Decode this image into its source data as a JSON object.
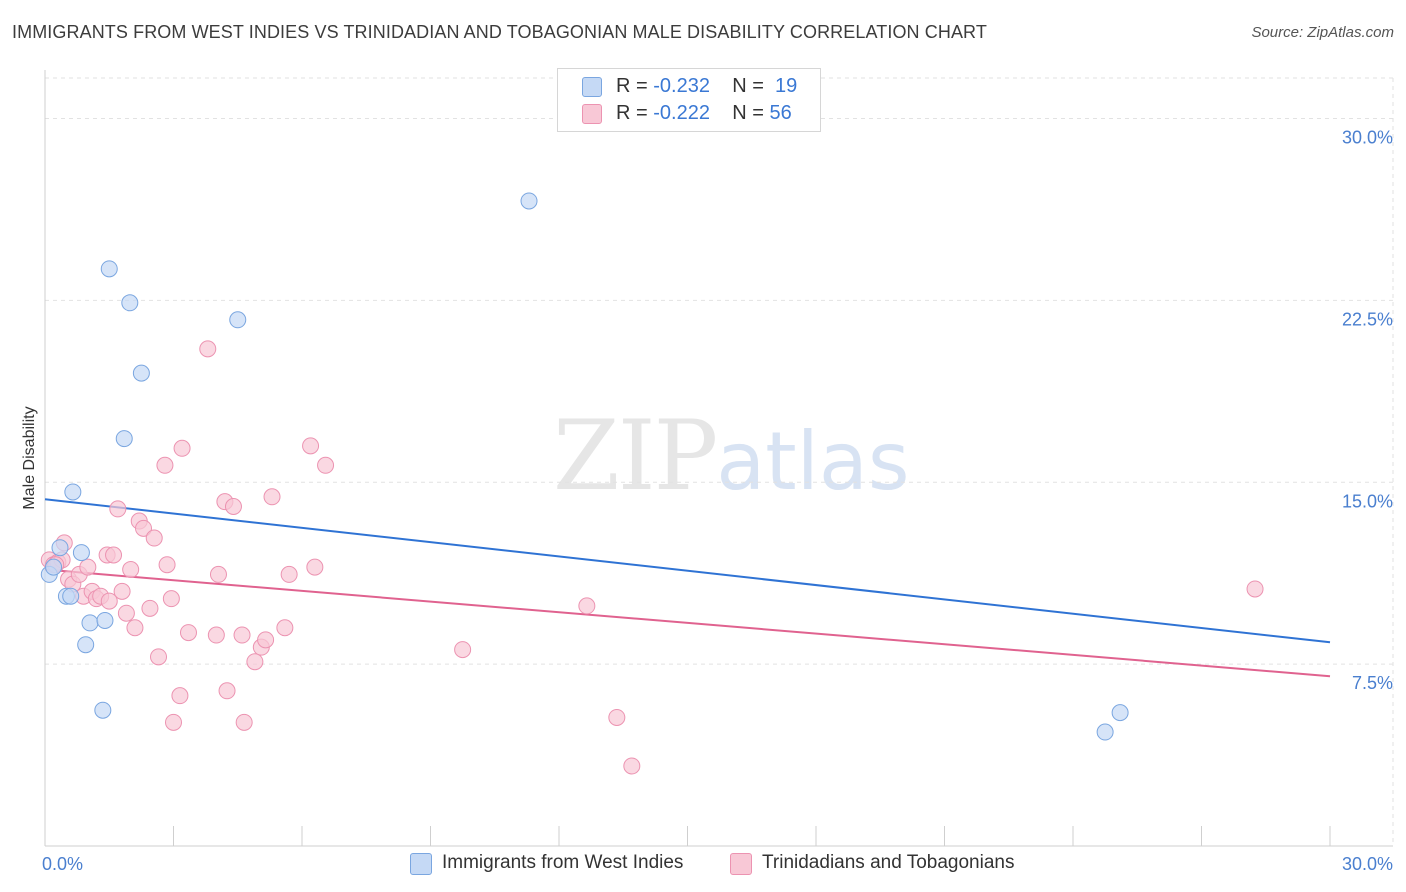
{
  "title": "IMMIGRANTS FROM WEST INDIES VS TRINIDADIAN AND TOBAGONIAN MALE DISABILITY CORRELATION CHART",
  "source": "Source: ZipAtlas.com",
  "watermark": {
    "zip": "ZIP",
    "atlas": "atlas"
  },
  "legend": {
    "r_label": "R =",
    "n_label": "N =",
    "rows": [
      {
        "r": "-0.232",
        "n": "19"
      },
      {
        "r": "-0.222",
        "n": "56"
      }
    ]
  },
  "colors": {
    "blue_fill": "#c5d9f5",
    "blue_stroke": "#7aa6e0",
    "blue_line": "#2f73d4",
    "pink_fill": "#f8c8d6",
    "pink_stroke": "#ec93b1",
    "pink_line": "#e0628f"
  },
  "chart_data": {
    "type": "scatter",
    "title": "IMMIGRANTS FROM WEST INDIES VS TRINIDADIAN AND TOBAGONIAN MALE DISABILITY CORRELATION CHART",
    "xlabel": "",
    "ylabel": "Male Disability",
    "xlim": [
      0,
      30
    ],
    "ylim": [
      0,
      32
    ],
    "x_ticks": [
      "0.0%",
      "30.0%"
    ],
    "y_ticks": [
      {
        "value": 7.5,
        "label": "7.5%"
      },
      {
        "value": 15.0,
        "label": "15.0%"
      },
      {
        "value": 22.5,
        "label": "22.5%"
      },
      {
        "value": 30.0,
        "label": "30.0%"
      }
    ],
    "series": [
      {
        "name": "Immigrants from West Indies",
        "r": -0.232,
        "n": 19,
        "points": [
          [
            0.1,
            11.2
          ],
          [
            0.2,
            11.5
          ],
          [
            0.35,
            12.3
          ],
          [
            0.5,
            10.3
          ],
          [
            0.6,
            10.3
          ],
          [
            0.65,
            14.6
          ],
          [
            0.85,
            12.1
          ],
          [
            0.95,
            8.3
          ],
          [
            1.05,
            9.2
          ],
          [
            1.35,
            5.6
          ],
          [
            1.4,
            9.3
          ],
          [
            1.5,
            23.8
          ],
          [
            1.85,
            16.8
          ],
          [
            1.98,
            22.4
          ],
          [
            2.25,
            19.5
          ],
          [
            4.5,
            21.7
          ],
          [
            11.3,
            26.6
          ],
          [
            24.75,
            4.7
          ],
          [
            25.1,
            5.5
          ]
        ],
        "trend": {
          "x0": 0,
          "y0": 14.3,
          "x1": 30,
          "y1": 8.4
        }
      },
      {
        "name": "Trinidadians and Tobagonians",
        "r": -0.222,
        "n": 56,
        "points": [
          [
            0.1,
            11.8
          ],
          [
            0.2,
            11.6
          ],
          [
            0.3,
            11.7
          ],
          [
            0.4,
            11.8
          ],
          [
            0.45,
            12.5
          ],
          [
            0.55,
            11.0
          ],
          [
            0.65,
            10.8
          ],
          [
            0.8,
            11.2
          ],
          [
            0.9,
            10.3
          ],
          [
            1.0,
            11.5
          ],
          [
            1.1,
            10.5
          ],
          [
            1.2,
            10.2
          ],
          [
            1.3,
            10.3
          ],
          [
            1.45,
            12.0
          ],
          [
            1.5,
            10.1
          ],
          [
            1.6,
            12.0
          ],
          [
            1.7,
            13.9
          ],
          [
            1.8,
            10.5
          ],
          [
            1.9,
            9.6
          ],
          [
            2.0,
            11.4
          ],
          [
            2.1,
            9.0
          ],
          [
            2.2,
            13.4
          ],
          [
            2.3,
            13.1
          ],
          [
            2.45,
            9.8
          ],
          [
            2.55,
            12.7
          ],
          [
            2.65,
            7.8
          ],
          [
            2.8,
            15.7
          ],
          [
            2.85,
            11.6
          ],
          [
            2.95,
            10.2
          ],
          [
            3.0,
            5.1
          ],
          [
            3.15,
            6.2
          ],
          [
            3.2,
            16.4
          ],
          [
            3.35,
            8.8
          ],
          [
            3.8,
            20.5
          ],
          [
            4.05,
            11.2
          ],
          [
            4.2,
            14.2
          ],
          [
            4.25,
            6.4
          ],
          [
            4.0,
            8.7
          ],
          [
            4.4,
            14.0
          ],
          [
            4.6,
            8.7
          ],
          [
            4.65,
            5.1
          ],
          [
            4.9,
            7.6
          ],
          [
            5.05,
            8.2
          ],
          [
            5.15,
            8.5
          ],
          [
            5.3,
            14.4
          ],
          [
            5.6,
            9.0
          ],
          [
            5.7,
            11.2
          ],
          [
            6.2,
            16.5
          ],
          [
            6.3,
            11.5
          ],
          [
            6.55,
            15.7
          ],
          [
            9.75,
            8.1
          ],
          [
            12.65,
            9.9
          ],
          [
            13.35,
            5.3
          ],
          [
            13.7,
            3.3
          ],
          [
            28.25,
            10.6
          ],
          [
            0.25,
            11.6
          ]
        ],
        "trend": {
          "x0": 0,
          "y0": 11.4,
          "x1": 30,
          "y1": 7.0
        }
      }
    ],
    "legend_position": "top-center",
    "grid": true
  }
}
